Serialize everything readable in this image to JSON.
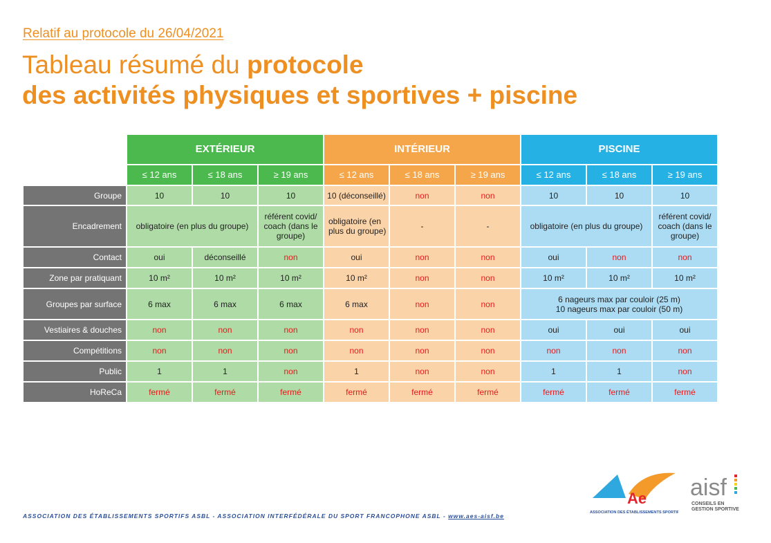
{
  "subtitle": "Relatif au protocole du 26/04/2021",
  "title": {
    "line1_normal": "Tableau résumé du ",
    "line1_bold": "protocole",
    "line2_bold": "des activités physiques et sportives + piscine"
  },
  "colors": {
    "title": "#ee8f22",
    "exterieur": "#4bb94e",
    "interieur": "#f6a64a",
    "piscine": "#25b1e4",
    "label_bg": "#747474",
    "non_text": "#e41b1b"
  },
  "table": {
    "sections": [
      "EXTÉRIEUR",
      "INTÉRIEUR",
      "PISCINE"
    ],
    "ages": [
      "≤ 12 ans",
      "≤ 18 ans",
      "≥ 19 ans"
    ],
    "rows": {
      "groupe": {
        "label": "Groupe",
        "ext": [
          "10",
          "10",
          "10"
        ],
        "int": [
          "10 (déconseillé)",
          "non",
          "non"
        ],
        "pis": [
          "10",
          "10",
          "10"
        ]
      },
      "encadrement": {
        "label": "Encadrement",
        "ext_merged": "obligatoire  (en plus du groupe)",
        "ext_19": "référent covid/ coach (dans le groupe)",
        "int_12": "obligatoire  (en plus du groupe)",
        "int_18": "-",
        "int_19": "-",
        "pis_merged": "obligatoire  (en plus du groupe)",
        "pis_19": "référent covid/ coach (dans le groupe)"
      },
      "contact": {
        "label": "Contact",
        "ext": [
          "oui",
          "déconseillé",
          "non"
        ],
        "int": [
          "oui",
          "non",
          "non"
        ],
        "pis": [
          "oui",
          "non",
          "non"
        ]
      },
      "zone": {
        "label": "Zone par pratiquant",
        "ext": [
          "10 m²",
          "10 m²",
          "10 m²"
        ],
        "int": [
          "10 m²",
          "non",
          "non"
        ],
        "pis": [
          "10 m²",
          "10 m²",
          "10 m²"
        ]
      },
      "groupes_surface": {
        "label": "Groupes par surface",
        "ext": [
          "6 max",
          "6 max",
          "6 max"
        ],
        "int": [
          "6 max",
          "non",
          "non"
        ],
        "pis_line1": "6 nageurs max par couloir (25 m)",
        "pis_line2": "10 nageurs max par couloir (50 m)"
      },
      "vestiaires": {
        "label": "Vestiaires & douches",
        "ext": [
          "non",
          "non",
          "non"
        ],
        "int": [
          "non",
          "non",
          "non"
        ],
        "pis": [
          "oui",
          "oui",
          "oui"
        ]
      },
      "competitions": {
        "label": "Compétitions",
        "ext": [
          "non",
          "non",
          "non"
        ],
        "int": [
          "non",
          "non",
          "non"
        ],
        "pis": [
          "non",
          "non",
          "non"
        ]
      },
      "public": {
        "label": "Public",
        "ext": [
          "1",
          "1",
          "non"
        ],
        "int": [
          "1",
          "non",
          "non"
        ],
        "pis": [
          "1",
          "1",
          "non"
        ]
      },
      "horeca": {
        "label": "HoReCa",
        "ext": [
          "fermé",
          "fermé",
          "fermé"
        ],
        "int": [
          "fermé",
          "fermé",
          "fermé"
        ],
        "pis": [
          "fermé",
          "fermé",
          "fermé"
        ]
      }
    }
  },
  "footer": {
    "text": "ASSOCIATION DES ÉTABLISSEMENTS SPORTIFS ASBL - ASSOCIATION INTERFÉDÉRALE DU SPORT FRANCOPHONE ASBL - ",
    "link": "www.aes-aisf.be"
  },
  "logos": {
    "aes_text": "ASSOCIATION DES ÉTABLISSEMENTS SPORTIFS",
    "aes_letters": "Ae",
    "aisf_letters": "aisf",
    "aisf_tagline1": "CONSEILS EN",
    "aisf_tagline2": "GESTION SPORTIVE"
  }
}
